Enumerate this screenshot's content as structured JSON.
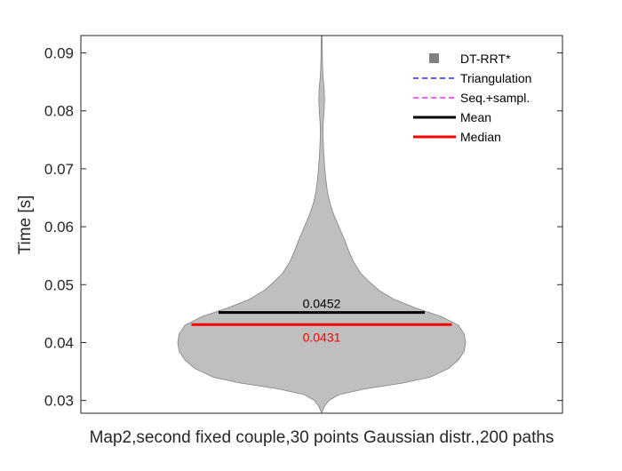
{
  "chart_data": {
    "type": "violin",
    "title": "",
    "xlabel": "Map2,second fixed couple,30 points Gaussian distr.,200 paths",
    "ylabel": "Time [s]",
    "ylim": [
      0.0278,
      0.093
    ],
    "yticks": [
      0.03,
      0.04,
      0.05,
      0.06,
      0.07,
      0.08,
      0.09
    ],
    "ytick_labels": [
      "0.03",
      "0.04",
      "0.05",
      "0.06",
      "0.07",
      "0.08",
      "0.09"
    ],
    "grid": false,
    "legend_position": "top-right",
    "series": [
      {
        "name": "DT-RRT*",
        "color": "#808080",
        "fill": "#bfbfbf",
        "density_profile": [
          [
            0.0278,
            0.0
          ],
          [
            0.029,
            0.02
          ],
          [
            0.03,
            0.05
          ],
          [
            0.031,
            0.12
          ],
          [
            0.032,
            0.3
          ],
          [
            0.033,
            0.56
          ],
          [
            0.034,
            0.75
          ],
          [
            0.0355,
            0.88
          ],
          [
            0.037,
            0.95
          ],
          [
            0.0385,
            0.99
          ],
          [
            0.04,
            1.0
          ],
          [
            0.0415,
            0.99
          ],
          [
            0.043,
            0.95
          ],
          [
            0.0445,
            0.83
          ],
          [
            0.046,
            0.65
          ],
          [
            0.0475,
            0.5
          ],
          [
            0.049,
            0.4
          ],
          [
            0.0505,
            0.33
          ],
          [
            0.052,
            0.27
          ],
          [
            0.054,
            0.22
          ],
          [
            0.056,
            0.185
          ],
          [
            0.058,
            0.155
          ],
          [
            0.06,
            0.12
          ],
          [
            0.062,
            0.085
          ],
          [
            0.064,
            0.058
          ],
          [
            0.066,
            0.04
          ],
          [
            0.068,
            0.03
          ],
          [
            0.07,
            0.022
          ],
          [
            0.072,
            0.016
          ],
          [
            0.074,
            0.012
          ],
          [
            0.076,
            0.009
          ],
          [
            0.078,
            0.011
          ],
          [
            0.08,
            0.017
          ],
          [
            0.082,
            0.02
          ],
          [
            0.084,
            0.017
          ],
          [
            0.0855,
            0.011
          ],
          [
            0.087,
            0.007
          ],
          [
            0.089,
            0.005
          ],
          [
            0.091,
            0.004
          ],
          [
            0.093,
            0.003
          ]
        ]
      }
    ],
    "lines": [
      {
        "name": "Triangulation",
        "style": "dashed",
        "color": "#0000ff",
        "value": null
      },
      {
        "name": "Seq.+sampl.",
        "style": "dashed",
        "color": "#ff00ff",
        "value": null
      },
      {
        "name": "Mean",
        "style": "solid",
        "color": "#000000",
        "value": 0.0452,
        "label": "0.0452"
      },
      {
        "name": "Median",
        "style": "solid",
        "color": "#ff0000",
        "value": 0.0431,
        "label": "0.0431"
      }
    ]
  }
}
